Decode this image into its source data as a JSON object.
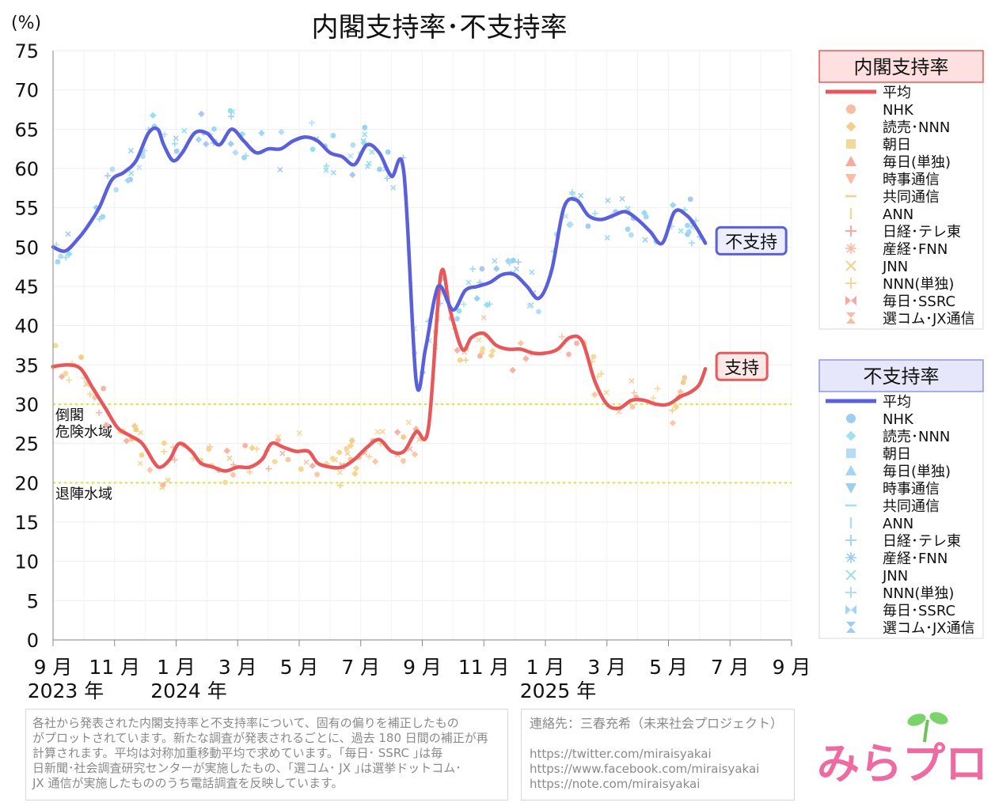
{
  "chart_data": {
    "type": "line",
    "title": "内閣支持率･不支持率",
    "ylabel": "(%)",
    "ylim": [
      0,
      75
    ],
    "yticks": [
      0,
      5,
      10,
      15,
      20,
      25,
      30,
      35,
      40,
      45,
      50,
      55,
      60,
      65,
      70,
      75
    ],
    "xlim": [
      0,
      24
    ],
    "x_unit": "months since Sep 2023",
    "xticks": [
      {
        "x": 0,
        "label": "9 月",
        "year": "2023 年"
      },
      {
        "x": 2,
        "label": "11 月",
        "year": ""
      },
      {
        "x": 4,
        "label": "1 月",
        "year": "2024 年"
      },
      {
        "x": 6,
        "label": "3 月",
        "year": ""
      },
      {
        "x": 8,
        "label": "5 月",
        "year": ""
      },
      {
        "x": 10,
        "label": "7 月",
        "year": ""
      },
      {
        "x": 12,
        "label": "9 月",
        "year": ""
      },
      {
        "x": 14,
        "label": "11 月",
        "year": ""
      },
      {
        "x": 16,
        "label": "1 月",
        "year": "2025 年"
      },
      {
        "x": 18,
        "label": "3 月",
        "year": ""
      },
      {
        "x": 20,
        "label": "5 月",
        "year": ""
      },
      {
        "x": 22,
        "label": "7 月",
        "year": ""
      },
      {
        "x": 24,
        "label": "9 月",
        "year": ""
      }
    ],
    "reference_lines": [
      {
        "y": 30,
        "label": "倒閣\n危険水域",
        "color": "#d9ea36"
      },
      {
        "y": 20,
        "label": "退陣水域",
        "color": "#d9ea36"
      }
    ],
    "series": [
      {
        "name": "支持",
        "legend_group": "内閣支持率",
        "color": "#e8585a",
        "x": [
          0,
          0.5,
          0.9,
          1.3,
          1.7,
          2.1,
          2.5,
          2.9,
          3.3,
          3.5,
          3.8,
          4.1,
          4.5,
          4.8,
          5.2,
          5.6,
          6.0,
          6.4,
          6.8,
          7.1,
          7.5,
          7.9,
          8.3,
          8.6,
          9.0,
          9.4,
          9.8,
          10.2,
          10.6,
          11.0,
          11.4,
          11.8,
          12.2,
          12.6,
          12.9,
          13.3,
          13.6,
          14.0,
          14.4,
          14.8,
          15.2,
          15.6,
          16.0,
          16.4,
          16.8,
          17.2,
          17.6,
          18.0,
          18.4,
          18.8,
          19.2,
          19.6,
          20.0,
          20.4,
          20.7,
          21.0,
          21.2
        ],
        "values": [
          34.8,
          35.0,
          34.5,
          32.0,
          29.5,
          27.0,
          26.0,
          25.0,
          22.5,
          22.0,
          23.0,
          25.0,
          24.0,
          22.5,
          22.0,
          21.5,
          22.0,
          22.0,
          23.0,
          25.0,
          24.5,
          24.0,
          24.0,
          22.5,
          22.0,
          22.0,
          23.0,
          24.5,
          25.5,
          24.0,
          24.0,
          26.5,
          27.0,
          46.5,
          42.0,
          37.0,
          38.5,
          39.0,
          37.5,
          37.0,
          37.0,
          36.5,
          36.5,
          37.0,
          38.5,
          38.0,
          33.0,
          30.0,
          29.5,
          30.5,
          30.5,
          30.0,
          30.0,
          31.0,
          31.5,
          32.5,
          34.5
        ]
      },
      {
        "name": "不支持",
        "legend_group": "不支持率",
        "color": "#5a5fdc",
        "x": [
          0,
          0.4,
          0.8,
          1.1,
          1.5,
          1.9,
          2.3,
          2.7,
          3.1,
          3.4,
          3.6,
          3.9,
          4.2,
          4.6,
          5.0,
          5.4,
          5.8,
          6.2,
          6.6,
          7.0,
          7.4,
          7.8,
          8.2,
          8.6,
          9.0,
          9.4,
          9.8,
          10.2,
          10.6,
          11.0,
          11.4,
          11.8,
          12.1,
          12.4,
          12.6,
          13.0,
          13.4,
          13.8,
          14.2,
          14.6,
          15.0,
          15.4,
          15.8,
          16.2,
          16.6,
          17.0,
          17.4,
          17.8,
          18.2,
          18.6,
          19.0,
          19.4,
          19.8,
          20.2,
          20.6,
          20.9,
          21.2
        ],
        "values": [
          50.0,
          49.5,
          51.0,
          52.5,
          55.0,
          58.5,
          59.5,
          61.0,
          64.5,
          65.0,
          63.0,
          61.0,
          62.0,
          64.5,
          64.5,
          63.0,
          65.0,
          63.5,
          62.0,
          62.5,
          62.5,
          63.5,
          64.0,
          63.5,
          62.0,
          61.5,
          60.5,
          63.0,
          62.0,
          59.0,
          59.5,
          33.0,
          37.0,
          43.5,
          45.0,
          42.0,
          44.5,
          45.0,
          45.5,
          46.5,
          46.5,
          45.0,
          43.5,
          47.0,
          55.0,
          56.0,
          54.0,
          53.5,
          54.0,
          54.5,
          53.5,
          52.0,
          50.5,
          54.5,
          54.0,
          52.5,
          50.5
        ]
      }
    ],
    "callouts": [
      {
        "text": "不支持",
        "series": "不支持"
      },
      {
        "text": "支持",
        "series": "支持"
      }
    ],
    "legends": [
      {
        "title": "内閣支持率",
        "position": "right-top",
        "title_bg": "#fde0df",
        "title_border": "#e8585a",
        "line_color": "#e8585a",
        "items": [
          "平均",
          "NHK",
          "読売･NNN",
          "朝日",
          "毎日(単独)",
          "時事通信",
          "共同通信",
          "ANN",
          "日経･テレ東",
          "産経･FNN",
          "JNN",
          "NNN(単独)",
          "毎日･SSRC",
          "選コム･JX通信"
        ]
      },
      {
        "title": "不支持率",
        "position": "right-bottom",
        "title_bg": "#e6e7fb",
        "title_border": "#8f93e6",
        "line_color": "#5a5fdc",
        "items": [
          "平均",
          "NHK",
          "読売･NNN",
          "朝日",
          "毎日(単独)",
          "時事通信",
          "共同通信",
          "ANN",
          "日経･テレ東",
          "産経･FNN",
          "JNN",
          "NNN(単独)",
          "毎日･SSRC",
          "選コム･JX通信"
        ]
      }
    ]
  },
  "note": {
    "lines": [
      "各社から発表された内閣支持率と不支持率について、固有の偏りを補正したもの",
      "がプロットされています。新たな調査が発表されるごとに、過去 180 日間の補正が再",
      "計算されます。平均は対称加重移動平均で求めています。｢毎日･ SSRC ｣は毎",
      "日新聞･社会調査研究センターが実施したもの、｢選コム･ JX ｣は選挙ドットコム･",
      "JX 通信が実施したもののうち電話調査を反映しています。"
    ]
  },
  "contact": {
    "title": "連絡先：三春充希（未来社会プロジェクト）",
    "links": [
      "https://twitter.com/miraisyakai",
      "https://www.facebook.com/miraisyakai",
      "https://note.com/miraisyakai"
    ]
  },
  "logo": {
    "text": "みらプロ",
    "colors": [
      "#e68ac9",
      "#f2c94c",
      "#ef6aa0",
      "#5fc1e8",
      "#7bd36b"
    ]
  }
}
